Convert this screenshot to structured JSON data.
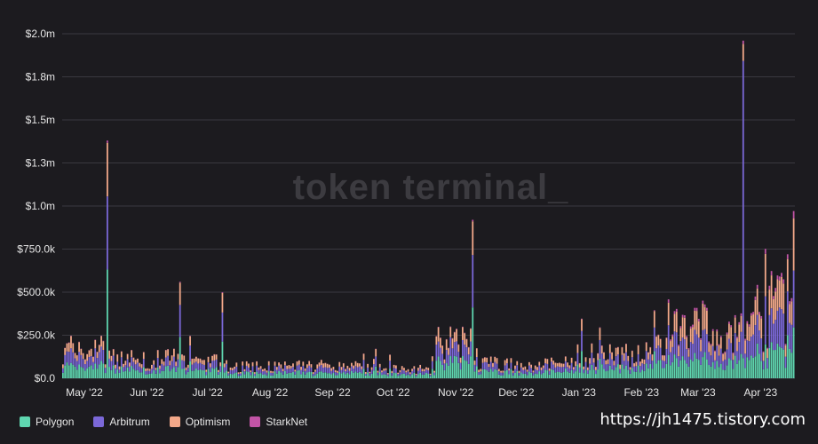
{
  "chart_data": {
    "type": "bar",
    "stacked": true,
    "watermark": "token terminal_",
    "y_tick_labels": [
      "$0.0",
      "$250.0k",
      "$500.0k",
      "$750.0k",
      "$1.0m",
      "$1.3m",
      "$1.5m",
      "$1.8m",
      "$2.0m"
    ],
    "y_tick_values": [
      0,
      250000,
      500000,
      750000,
      1000000,
      1250000,
      1500000,
      1750000,
      2000000
    ],
    "ylim": [
      0,
      2000000
    ],
    "x_tick_labels": [
      "May '22",
      "Jun '22",
      "Jul '22",
      "Aug '22",
      "Sep '22",
      "Oct '22",
      "Nov '22",
      "Dec '22",
      "Jan '23",
      "Feb '23",
      "Mar '23",
      "Apr '23"
    ],
    "x_start": "2022-04-20",
    "x_end": "2023-04-17",
    "grid": true,
    "legend_position": "bottom-left",
    "series": [
      {
        "name": "Polygon",
        "color": "#5fd6b0"
      },
      {
        "name": "Arbitrum",
        "color": "#7b68d8"
      },
      {
        "name": "Optimism",
        "color": "#f4a98a"
      },
      {
        "name": "StarkNet",
        "color": "#c254a6"
      }
    ],
    "notable_values": [
      {
        "date": "2022-05-12",
        "total": 1380000
      },
      {
        "date": "2022-06-17",
        "total": 560000
      },
      {
        "date": "2022-07-08",
        "total": 500000
      },
      {
        "date": "2022-11-09",
        "total": 920000
      },
      {
        "date": "2023-03-23",
        "total": 1960000
      },
      {
        "date": "2023-04-14",
        "total": 720000
      }
    ]
  },
  "credit": "https://jh1475.tistory.com"
}
